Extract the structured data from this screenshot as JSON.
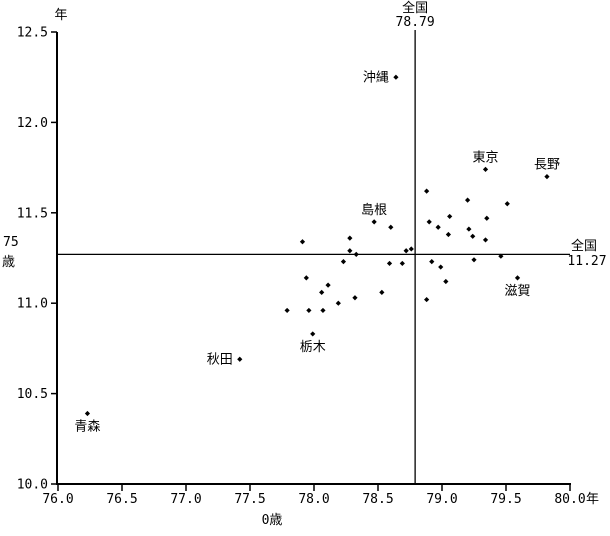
{
  "chart_data": {
    "type": "scatter",
    "title": "",
    "colors": {
      "foreground": "#000000",
      "background": "#ffffff"
    },
    "x_axis": {
      "title": "0歳",
      "unit": "年",
      "min": 76.0,
      "max": 80.0,
      "tick_values": [
        76.0,
        76.5,
        77.0,
        77.5,
        78.0,
        78.5,
        79.0,
        79.5,
        80.0
      ],
      "tick_labels": [
        "76.0",
        "76.5",
        "77.0",
        "77.5",
        "78.0",
        "78.5",
        "79.0",
        "79.5",
        "80.0"
      ]
    },
    "y_axis": {
      "title_lines": [
        "75",
        "歳"
      ],
      "unit": "年",
      "min": 10.0,
      "max": 12.5,
      "tick_values": [
        10.0,
        10.5,
        11.0,
        11.5,
        12.0,
        12.5
      ],
      "tick_labels": [
        "10.0",
        "10.5",
        "11.0",
        "11.5",
        "12.0",
        "12.5"
      ]
    },
    "reference_lines": {
      "vertical": {
        "name": "全国",
        "value": 78.79,
        "value_label": "78.79"
      },
      "horizontal": {
        "name": "全国",
        "value": 11.27,
        "value_label": "11.27"
      }
    },
    "points": [
      {
        "x": 78.64,
        "y": 12.25,
        "label": "沖縄",
        "label_pos": "left"
      },
      {
        "x": 79.34,
        "y": 11.74,
        "label": "東京",
        "label_pos": "above"
      },
      {
        "x": 79.82,
        "y": 11.7,
        "label": "長野",
        "label_pos": "above"
      },
      {
        "x": 78.88,
        "y": 11.62
      },
      {
        "x": 79.2,
        "y": 11.57
      },
      {
        "x": 79.51,
        "y": 11.55
      },
      {
        "x": 79.06,
        "y": 11.48
      },
      {
        "x": 79.35,
        "y": 11.47
      },
      {
        "x": 78.47,
        "y": 11.45,
        "label": "島根",
        "label_pos": "above"
      },
      {
        "x": 78.9,
        "y": 11.45
      },
      {
        "x": 78.6,
        "y": 11.42
      },
      {
        "x": 78.97,
        "y": 11.42
      },
      {
        "x": 79.21,
        "y": 11.41
      },
      {
        "x": 79.05,
        "y": 11.38
      },
      {
        "x": 79.24,
        "y": 11.37
      },
      {
        "x": 78.28,
        "y": 11.36
      },
      {
        "x": 79.34,
        "y": 11.35
      },
      {
        "x": 77.91,
        "y": 11.34
      },
      {
        "x": 78.76,
        "y": 11.3
      },
      {
        "x": 78.28,
        "y": 11.29
      },
      {
        "x": 78.72,
        "y": 11.29
      },
      {
        "x": 78.33,
        "y": 11.27
      },
      {
        "x": 79.46,
        "y": 11.26
      },
      {
        "x": 79.25,
        "y": 11.24
      },
      {
        "x": 78.23,
        "y": 11.23
      },
      {
        "x": 78.92,
        "y": 11.23
      },
      {
        "x": 78.59,
        "y": 11.22
      },
      {
        "x": 78.69,
        "y": 11.22
      },
      {
        "x": 78.99,
        "y": 11.2
      },
      {
        "x": 77.94,
        "y": 11.14
      },
      {
        "x": 79.59,
        "y": 11.14,
        "label": "滋賀",
        "label_pos": "below"
      },
      {
        "x": 79.03,
        "y": 11.12
      },
      {
        "x": 78.11,
        "y": 11.1
      },
      {
        "x": 78.06,
        "y": 11.06
      },
      {
        "x": 78.53,
        "y": 11.06
      },
      {
        "x": 78.32,
        "y": 11.03
      },
      {
        "x": 78.88,
        "y": 11.02
      },
      {
        "x": 78.19,
        "y": 11.0
      },
      {
        "x": 77.79,
        "y": 10.96
      },
      {
        "x": 77.96,
        "y": 10.96
      },
      {
        "x": 78.07,
        "y": 10.96
      },
      {
        "x": 77.99,
        "y": 10.83,
        "label": "栃木",
        "label_pos": "below"
      },
      {
        "x": 77.42,
        "y": 10.69,
        "label": "秋田",
        "label_pos": "left"
      },
      {
        "x": 76.23,
        "y": 10.39,
        "label": "青森",
        "label_pos": "below"
      }
    ]
  }
}
